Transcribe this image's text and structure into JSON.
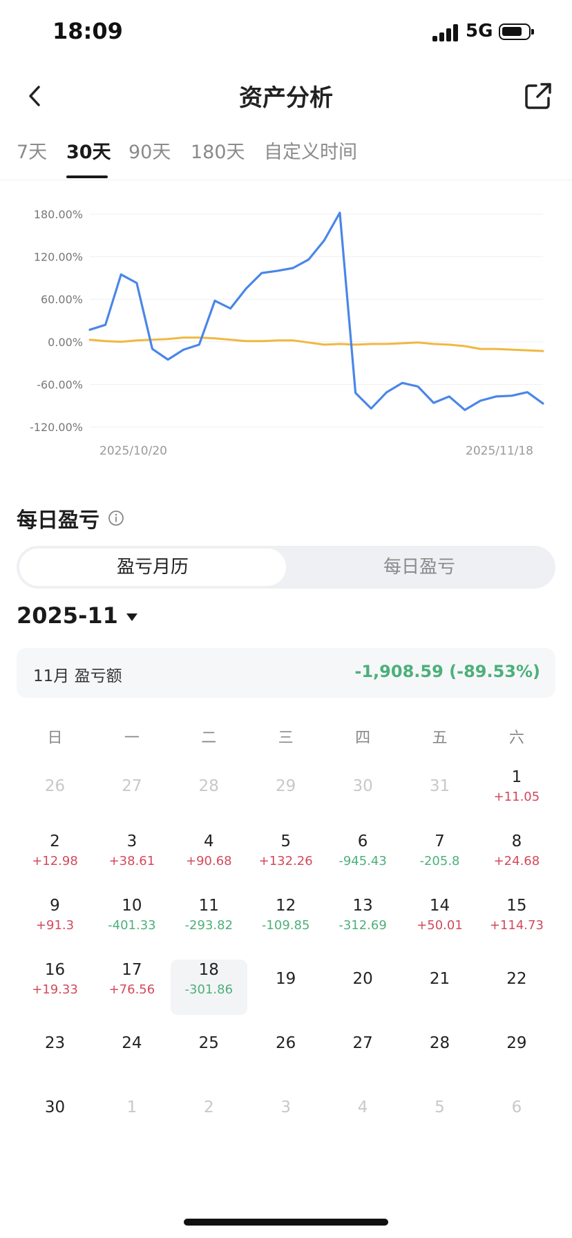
{
  "status_bar": {
    "time": "18:09",
    "network": "5G"
  },
  "header": {
    "title": "资产分析",
    "back_icon": "chevron-left-icon",
    "share_icon": "share-icon"
  },
  "tabs": [
    {
      "label": "7天",
      "active": false
    },
    {
      "label": "30天",
      "active": true
    },
    {
      "label": "90天",
      "active": false
    },
    {
      "label": "180天",
      "active": false
    },
    {
      "label": "自定义时间",
      "active": false
    }
  ],
  "chart_data": {
    "type": "line",
    "y_ticks": [
      "180.00%",
      "120.00%",
      "60.00%",
      "0.00%",
      "-60.00%",
      "-120.00%"
    ],
    "ylim": [
      -120,
      180
    ],
    "x_labels": [
      "2025/10/20",
      "2025/11/18"
    ],
    "grid": true,
    "colors": {
      "series_a": "#4a86e8",
      "series_b": "#f0b840"
    },
    "series": [
      {
        "values": [
          17,
          24,
          95,
          83,
          -10,
          -25,
          -11,
          -4,
          58,
          47,
          75,
          97,
          100,
          104,
          116,
          143,
          182,
          -72,
          -94,
          -71,
          -58,
          -63,
          -86,
          -77,
          -96,
          -83,
          -77,
          -76,
          -71,
          -87
        ]
      },
      {
        "values": [
          3,
          1,
          0,
          2,
          3,
          4,
          6,
          6,
          5,
          3,
          1,
          1,
          2,
          2,
          -1,
          -4,
          -3,
          -4,
          -3,
          -3,
          -2,
          -1,
          -3,
          -4,
          -6,
          -10,
          -10,
          -11,
          -12,
          -13
        ]
      }
    ]
  },
  "daily": {
    "title": "每日盈亏",
    "info_icon": "info-icon",
    "segments": [
      {
        "label": "盈亏月历",
        "active": true
      },
      {
        "label": "每日盈亏",
        "active": false
      }
    ],
    "month": "2025-11",
    "summary_label": "11月 盈亏额",
    "summary_value": "-1,908.59 (-89.53%)",
    "weekdays": [
      "日",
      "一",
      "二",
      "三",
      "四",
      "五",
      "六"
    ],
    "days": [
      {
        "day": "26",
        "muted": true
      },
      {
        "day": "27",
        "muted": true
      },
      {
        "day": "28",
        "muted": true
      },
      {
        "day": "29",
        "muted": true
      },
      {
        "day": "30",
        "muted": true
      },
      {
        "day": "31",
        "muted": true
      },
      {
        "day": "1",
        "pnl": "+11.05"
      },
      {
        "day": "2",
        "pnl": "+12.98"
      },
      {
        "day": "3",
        "pnl": "+38.61"
      },
      {
        "day": "4",
        "pnl": "+90.68"
      },
      {
        "day": "5",
        "pnl": "+132.26"
      },
      {
        "day": "6",
        "pnl": "-945.43"
      },
      {
        "day": "7",
        "pnl": "-205.8"
      },
      {
        "day": "8",
        "pnl": "+24.68"
      },
      {
        "day": "9",
        "pnl": "+91.3"
      },
      {
        "day": "10",
        "pnl": "-401.33"
      },
      {
        "day": "11",
        "pnl": "-293.82"
      },
      {
        "day": "12",
        "pnl": "-109.85"
      },
      {
        "day": "13",
        "pnl": "-312.69"
      },
      {
        "day": "14",
        "pnl": "+50.01"
      },
      {
        "day": "15",
        "pnl": "+114.73"
      },
      {
        "day": "16",
        "pnl": "+19.33"
      },
      {
        "day": "17",
        "pnl": "+76.56"
      },
      {
        "day": "18",
        "pnl": "-301.86",
        "today": true
      },
      {
        "day": "19"
      },
      {
        "day": "20"
      },
      {
        "day": "21"
      },
      {
        "day": "22"
      },
      {
        "day": "23"
      },
      {
        "day": "24"
      },
      {
        "day": "25"
      },
      {
        "day": "26"
      },
      {
        "day": "27"
      },
      {
        "day": "28"
      },
      {
        "day": "29"
      },
      {
        "day": "30"
      },
      {
        "day": "1",
        "muted": true
      },
      {
        "day": "2",
        "muted": true
      },
      {
        "day": "3",
        "muted": true
      },
      {
        "day": "4",
        "muted": true
      },
      {
        "day": "5",
        "muted": true
      },
      {
        "day": "6",
        "muted": true
      }
    ]
  }
}
